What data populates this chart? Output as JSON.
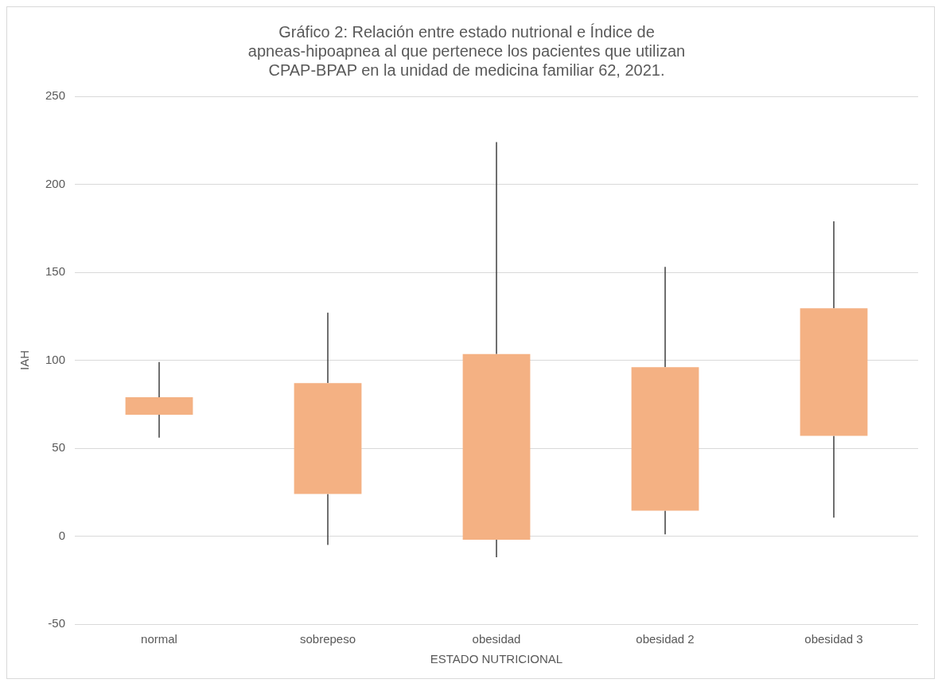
{
  "chart_data": {
    "type": "candlestick",
    "title": "Gráfico 2: Relación entre estado nutrional e Índice de apneas-hipoapnea al que pertenece los pacientes que utilizan CPAP-BPAP en la unidad de medicina familiar 62, 2021.",
    "xlabel": "ESTADO NUTRICIONAL",
    "ylabel": "IAH",
    "categories": [
      "normal",
      "sobrepeso",
      "obesidad",
      "obesidad 2",
      "obesidad 3"
    ],
    "ohlc": [
      [
        69,
        99,
        56,
        79
      ],
      [
        24,
        127,
        -5,
        87
      ],
      [
        -2,
        224,
        -12,
        103.5
      ],
      [
        14.5,
        153,
        1,
        96
      ],
      [
        57,
        179,
        10.5,
        129.5
      ]
    ],
    "color": "#f4b183",
    "ylim": [
      -50,
      250
    ],
    "yticks": [
      -50,
      0,
      50,
      100,
      150,
      200,
      250
    ],
    "grid": "y"
  }
}
